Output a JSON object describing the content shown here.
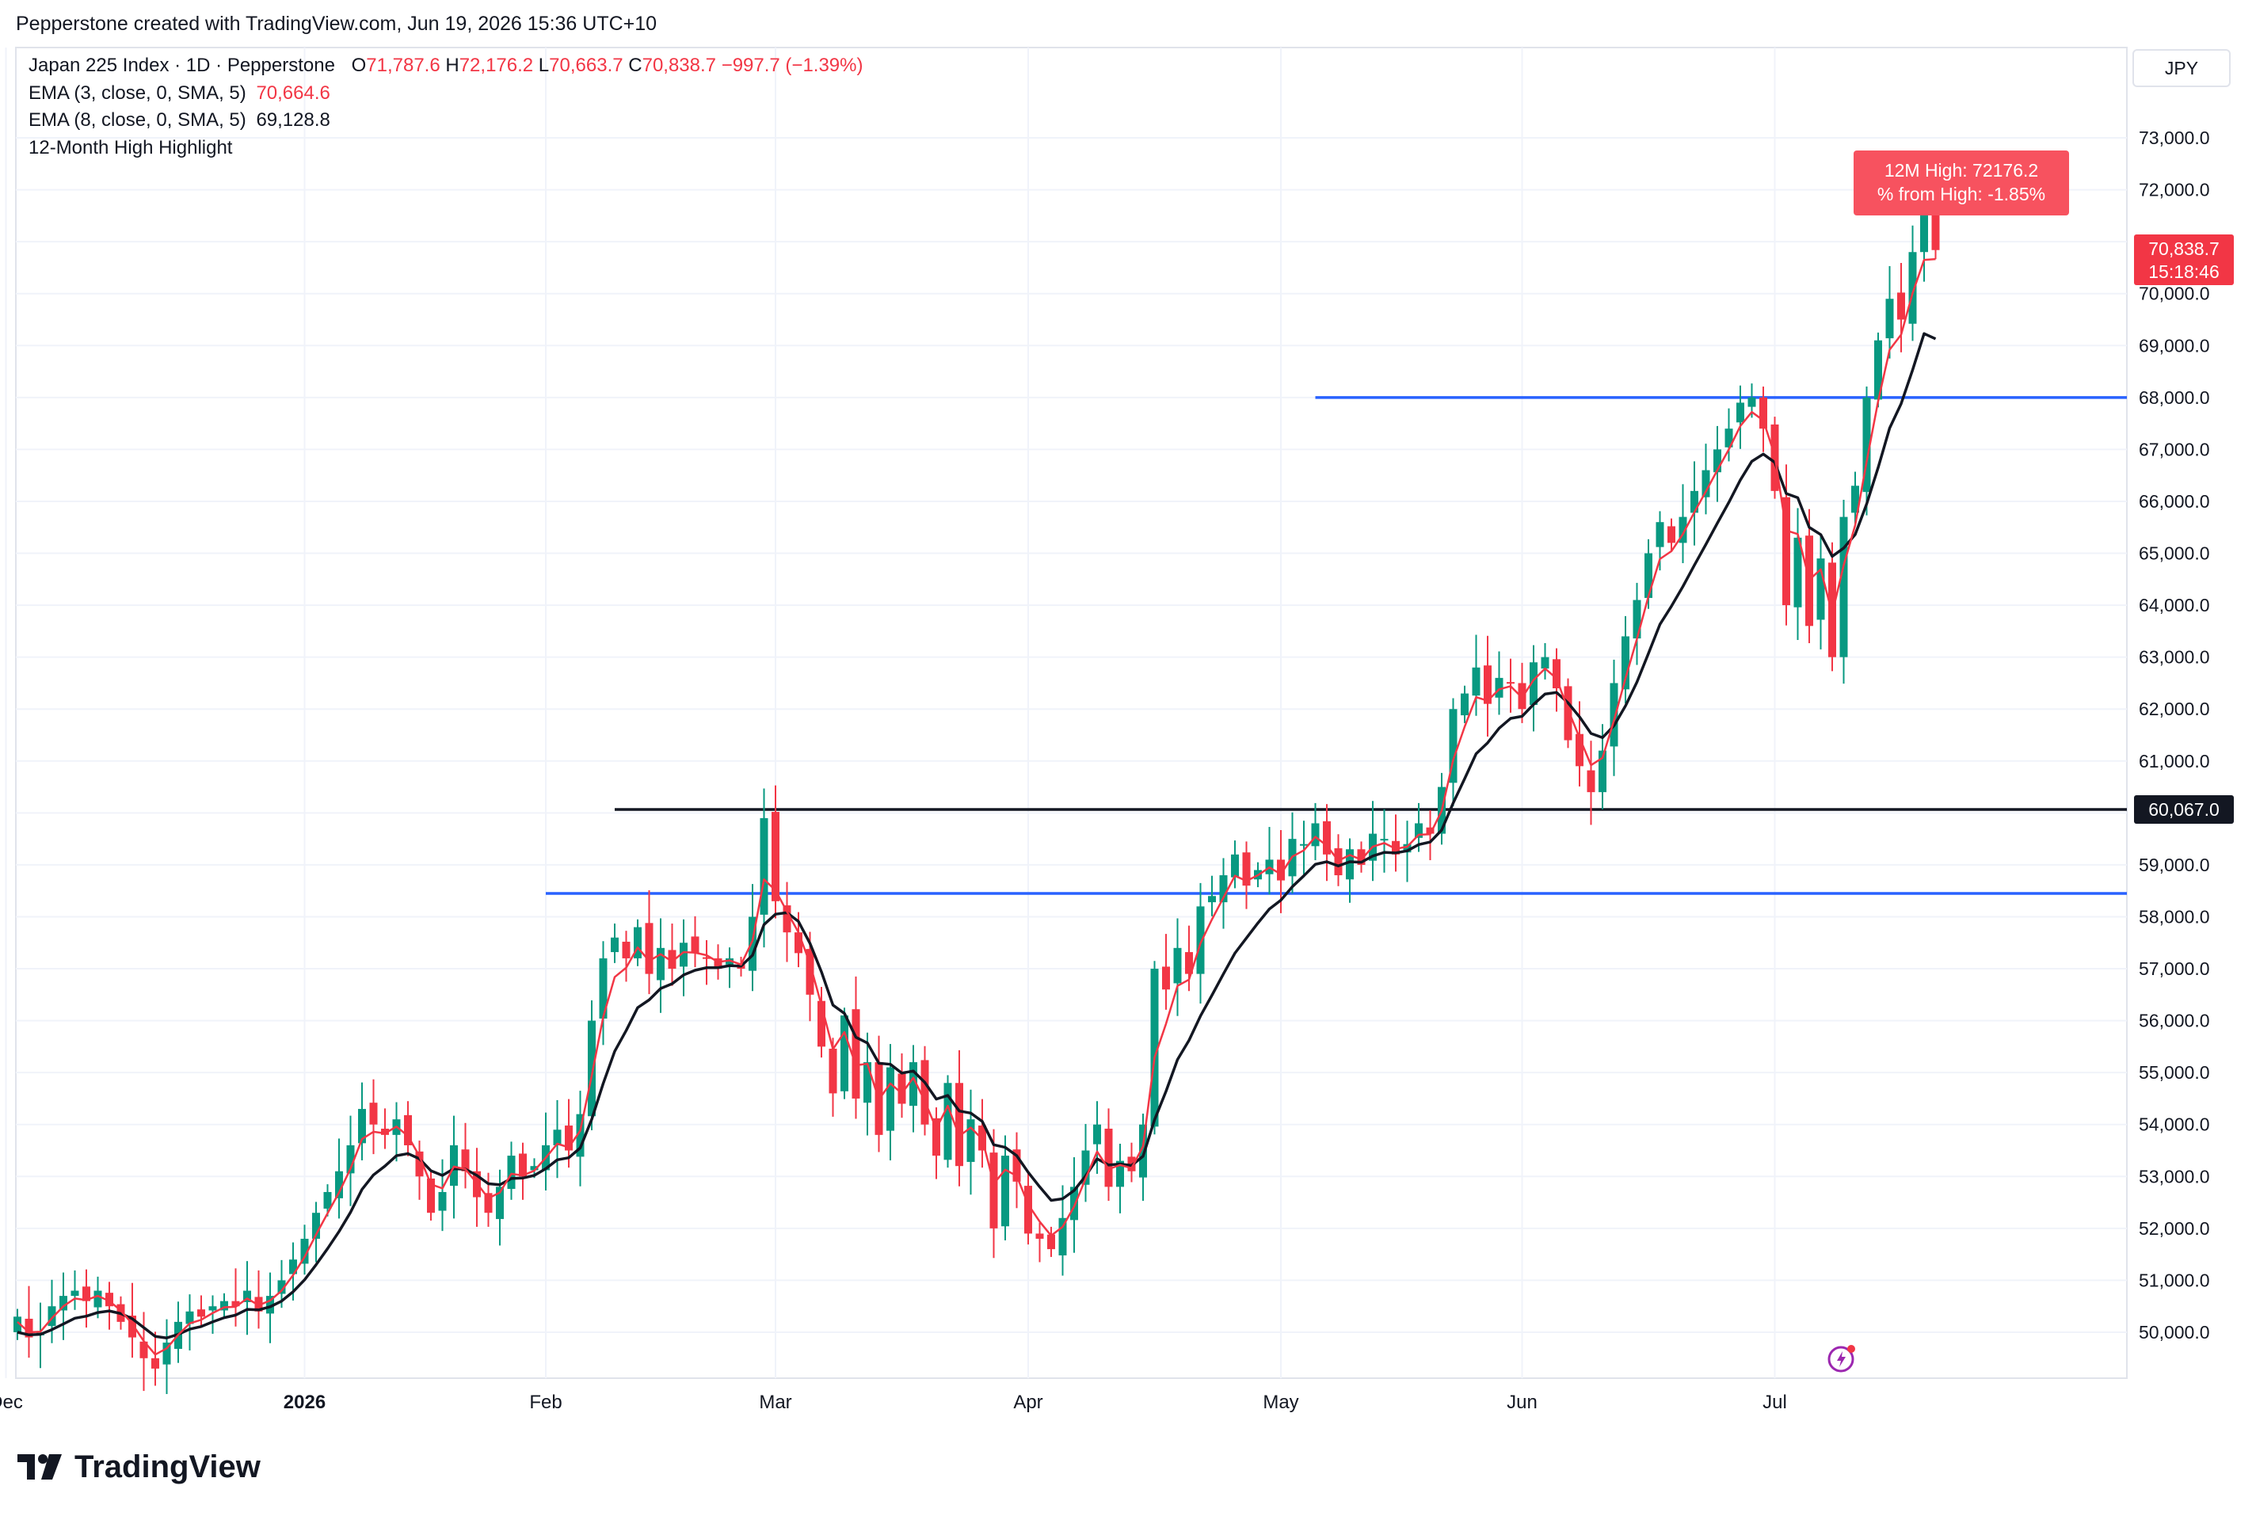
{
  "header": {
    "credit": "Pepperstone created with TradingView.com, Jun 19, 2026 15:36 UTC+10"
  },
  "legend": {
    "symbol": "Japan 225 Index · 1D · Pepperstone",
    "ohlc": [
      {
        "label": "O",
        "value": "71,787.6"
      },
      {
        "label": "H",
        "value": "72,176.2"
      },
      {
        "label": "L",
        "value": "70,663.7"
      },
      {
        "label": "C",
        "value": "70,838.7"
      }
    ],
    "change": "−997.7 (−1.39%)",
    "indicators": [
      {
        "name": "EMA (3, close, 0, SMA, 5)",
        "value": "70,664.6",
        "color": "#F23645"
      },
      {
        "name": "EMA (8, close, 0, SMA, 5)",
        "value": "69,128.8",
        "color": "#131722"
      },
      {
        "name": "12-Month High Highlight",
        "value": ""
      }
    ]
  },
  "currency": "JPY",
  "high_label": {
    "line1": "12M High: 72176.2",
    "line2": "% from High: -1.85%"
  },
  "price_tag": {
    "price": "70,838.7",
    "countdown": "15:18:46"
  },
  "level_tag": "60,067.0",
  "footer": {
    "logo_text": "TradingView",
    "logo_icon": "tradingview-logo-icon"
  },
  "icons": {
    "lightning": "lightning-icon"
  },
  "colors": {
    "up": "#089981",
    "down": "#F23645",
    "ema3": "#F23645",
    "ema8": "#131722",
    "support_line": "#2962FF",
    "resistance_line": "#131722",
    "grid": "#F0F3FA"
  },
  "chart_data": {
    "type": "candlestick",
    "title": "Japan 225 Index · 1D · Pepperstone",
    "ylim": [
      49000,
      73500
    ],
    "y_ticks": [
      50000,
      51000,
      52000,
      53000,
      54000,
      55000,
      56000,
      57000,
      58000,
      59000,
      60000,
      61000,
      62000,
      63000,
      64000,
      65000,
      66000,
      67000,
      68000,
      69000,
      70000,
      71000,
      72000,
      73000
    ],
    "y_tick_labels": [
      "50,000.0",
      "51,000.0",
      "52,000.0",
      "53,000.0",
      "54,000.0",
      "55,000.0",
      "56,000.0",
      "57,000.0",
      "58,000.0",
      "59,000.0",
      "60,000.0",
      "61,000.0",
      "62,000.0",
      "63,000.0",
      "64,000.0",
      "65,000.0",
      "66,000.0",
      "67,000.0",
      "68,000.0",
      "69,000.0",
      "70,000.0",
      "71,000.0",
      "72,000.0",
      "73,000.0"
    ],
    "x_ticks": [
      {
        "label": "Dec",
        "index": -1,
        "bold": false
      },
      {
        "label": "2026",
        "index": 25,
        "bold": true
      },
      {
        "label": "Feb",
        "index": 46,
        "bold": false
      },
      {
        "label": "Mar",
        "index": 66,
        "bold": false
      },
      {
        "label": "Apr",
        "index": 88,
        "bold": false
      },
      {
        "label": "May",
        "index": 110,
        "bold": false
      },
      {
        "label": "Jun",
        "index": 131,
        "bold": false
      },
      {
        "label": "Jul",
        "index": 153,
        "bold": false
      }
    ],
    "closes": [
      50300,
      49900,
      50000,
      50500,
      50700,
      50800,
      50600,
      50800,
      50500,
      50200,
      49900,
      49500,
      49300,
      49800,
      50200,
      50400,
      50300,
      50500,
      50600,
      50500,
      50800,
      50400,
      50700,
      51000,
      51400,
      51800,
      52300,
      52700,
      53100,
      53600,
      54300,
      54000,
      53800,
      54100,
      53600,
      53000,
      52300,
      52700,
      53600,
      53100,
      52600,
      52300,
      52800,
      53400,
      53000,
      53200,
      53600,
      53900,
      53500,
      54200,
      56000,
      57200,
      57600,
      57200,
      57800,
      56900,
      57400,
      57000,
      57500,
      57300,
      57200,
      57000,
      57200,
      57000,
      58000,
      59900,
      58300,
      57700,
      57300,
      56500,
      55500,
      54600,
      56100,
      54500,
      55200,
      53800,
      55100,
      54400,
      55200,
      54000,
      53400,
      54800,
      53200,
      54100,
      53500,
      52000,
      53400,
      52900,
      51900,
      51800,
      51600,
      52200,
      52800,
      53500,
      54000,
      52800,
      53300,
      53100,
      54000,
      57000,
      56600,
      57400,
      56900,
      58200,
      58400,
      58800,
      59200,
      58600,
      58900,
      59100,
      58700,
      59500,
      59400,
      59800,
      59200,
      58800,
      59300,
      59000,
      59600,
      59500,
      59200,
      59400,
      59800,
      59600,
      60500,
      62000,
      62300,
      62800,
      62100,
      62600,
      62500,
      62000,
      62900,
      63000,
      62400,
      61400,
      60900,
      60400,
      61200,
      62500,
      63400,
      64100,
      65000,
      65600,
      65200,
      65700,
      66200,
      66600,
      67000,
      67400,
      67900,
      68000,
      67400,
      66200,
      64000,
      65300,
      63600,
      64900,
      63000,
      65700,
      66300,
      68000,
      69100,
      69900,
      69500,
      70800,
      71700,
      70838.7
    ],
    "ema3": [
      50200,
      50000,
      50010,
      50270,
      50500,
      50650,
      50620,
      50700,
      50600,
      50420,
      50160,
      49830,
      49570,
      49690,
      49950,
      50170,
      50240,
      50370,
      50480,
      50490,
      50650,
      50520,
      50610,
      50800,
      51100,
      51450,
      51880,
      52290,
      52690,
      53150,
      53720,
      53860,
      53830,
      53960,
      53780,
      53390,
      52850,
      52770,
      53190,
      53140,
      52870,
      52580,
      52690,
      53050,
      53020,
      53110,
      53360,
      53630,
      53560,
      53880,
      54940,
      56070,
      56840,
      57020,
      57410,
      57150,
      57280,
      57140,
      57320,
      57310,
      57260,
      57130,
      57160,
      57080,
      57540,
      58720,
      58510,
      58100,
      57700,
      57100,
      56300,
      55450,
      55780,
      55140,
      55170,
      54480,
      54790,
      54600,
      54900,
      54450,
      53920,
      54360,
      53780,
      53940,
      53720,
      52860,
      53130,
      53010,
      52460,
      52130,
      51860,
      52030,
      52420,
      52960,
      53480,
      53140,
      53220,
      53160,
      53580,
      55290,
      55940,
      56670,
      56790,
      57490,
      57950,
      58370,
      58790,
      58690,
      58800,
      58950,
      58820,
      59160,
      59280,
      59540,
      59370,
      59080,
      59190,
      59100,
      59350,
      59420,
      59310,
      59350,
      59580,
      59590,
      60040,
      61020,
      61660,
      62230,
      62160,
      62380,
      62440,
      62220,
      62560,
      62780,
      62590,
      61990,
      61450,
      60920,
      61060,
      61780,
      62590,
      63350,
      64170,
      64890,
      65040,
      65370,
      65790,
      66190,
      66600,
      67000,
      67450,
      67720,
      67560,
      66880,
      65440,
      65370,
      64490,
      64690,
      63840,
      64770,
      65540,
      66770,
      67930,
      68920,
      69210,
      70010,
      70650,
      70664.6
    ],
    "ema8": [
      50000,
      49950,
      49960,
      50050,
      50160,
      50270,
      50310,
      50380,
      50410,
      50360,
      50260,
      50090,
      49920,
      49890,
      49960,
      50060,
      50110,
      50200,
      50280,
      50330,
      50440,
      50430,
      50490,
      50600,
      50780,
      51010,
      51300,
      51610,
      51940,
      52310,
      52750,
      53030,
      53200,
      53400,
      53440,
      53340,
      53110,
      53020,
      53150,
      53140,
      53020,
      52860,
      52840,
      52960,
      52970,
      53020,
      53150,
      53320,
      53360,
      53550,
      54100,
      54790,
      55410,
      55810,
      56250,
      56400,
      56620,
      56710,
      56880,
      56970,
      57020,
      57020,
      57060,
      57050,
      57260,
      57850,
      58050,
      58080,
      57910,
      57490,
      56940,
      56300,
      56140,
      55680,
      55570,
      55180,
      55160,
      54990,
      55030,
      54810,
      54490,
      54560,
      54260,
      54220,
      54060,
      53610,
      53560,
      53400,
      53080,
      52800,
      52540,
      52570,
      52730,
      53010,
      53340,
      53220,
      53240,
      53210,
      53390,
      54090,
      54640,
      55250,
      55620,
      56090,
      56490,
      56900,
      57300,
      57590,
      57880,
      58150,
      58320,
      58580,
      58790,
      59010,
      59060,
      58980,
      59060,
      59050,
      59170,
      59240,
      59230,
      59270,
      59390,
      59440,
      59670,
      60190,
      60660,
      61140,
      61350,
      61630,
      61820,
      61860,
      62090,
      62290,
      62320,
      62120,
      61850,
      61530,
      61450,
      61680,
      62060,
      62520,
      63070,
      63630,
      63980,
      64360,
      64770,
      65170,
      65580,
      65980,
      66410,
      66770,
      66910,
      66750,
      66150,
      66070,
      65500,
      65360,
      64940,
      65100,
      65360,
      65950,
      66650,
      67410,
      67880,
      68530,
      69230,
      69128.8
    ],
    "series": [
      {
        "name": "EMA (3, close, 0, SMA, 5)",
        "color": "#F23645"
      },
      {
        "name": "EMA (8, close, 0, SMA, 5)",
        "color": "#131722"
      }
    ],
    "horizontal_levels": [
      {
        "value": 68000,
        "color": "#2962FF",
        "from_index": 113,
        "to_index": 170
      },
      {
        "value": 60067,
        "color": "#131722",
        "from_index": 52,
        "to_index": 170
      },
      {
        "value": 58450,
        "color": "#2962FF",
        "from_index": 46,
        "to_index": 123
      }
    ],
    "twelve_month_high": 72176.2,
    "last_price": 70838.7
  }
}
